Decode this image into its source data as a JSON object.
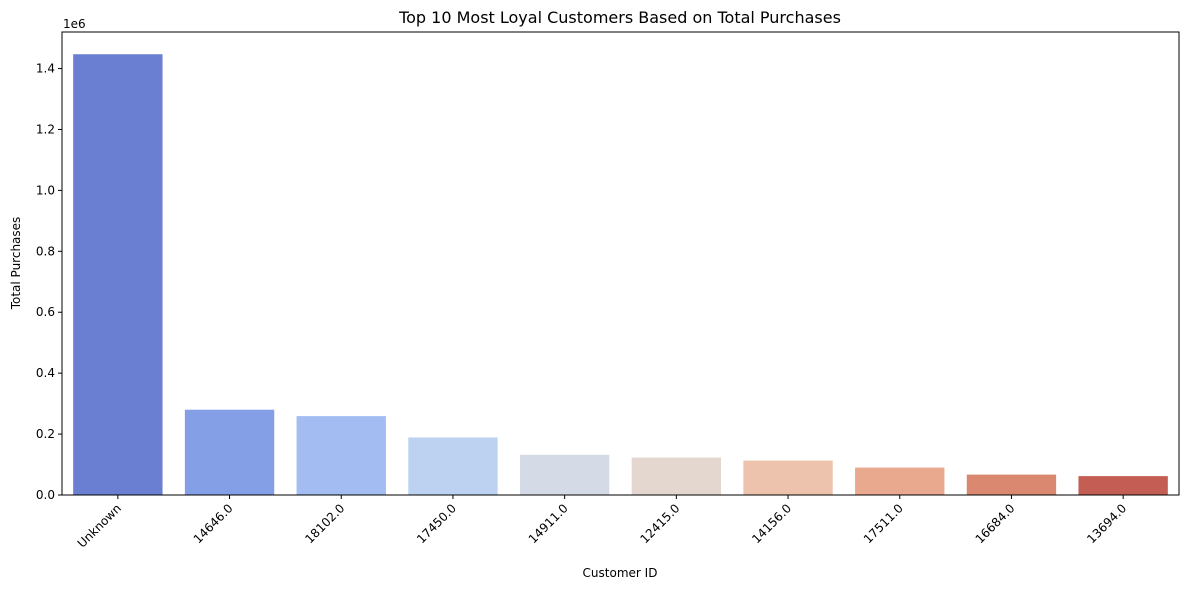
{
  "chart_data": {
    "type": "bar",
    "title": "Top 10 Most Loyal Customers Based on Total Purchases",
    "xlabel": "Customer ID",
    "ylabel": "Total Purchases",
    "offset_label": "1e6",
    "categories": [
      "Unknown",
      "14646.0",
      "18102.0",
      "17450.0",
      "14911.0",
      "12415.0",
      "14156.0",
      "17511.0",
      "16684.0",
      "13694.0"
    ],
    "values": [
      1447000,
      280000,
      259000,
      189000,
      132000,
      123000,
      113000,
      90000,
      67000,
      62000
    ],
    "colors": [
      "#6a7fd1",
      "#849fe6",
      "#a3bcf2",
      "#bdd1f1",
      "#d5dbe6",
      "#e4d7cf",
      "#edc3ad",
      "#e8a98f",
      "#db8871",
      "#c45e54"
    ],
    "yticks": [
      0,
      0.2,
      0.4,
      0.6,
      0.8,
      1.0,
      1.2,
      1.4
    ],
    "ytick_labels": [
      "0.0",
      "0.2",
      "0.4",
      "0.6",
      "0.8",
      "1.0",
      "1.2",
      "1.4"
    ],
    "ylim": [
      0,
      1.52
    ],
    "tick_label_rotation": 45,
    "grid": false,
    "legend": "none"
  }
}
